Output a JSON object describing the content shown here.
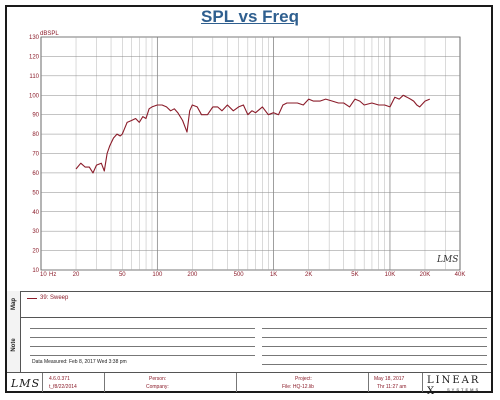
{
  "title": "SPL vs Freq",
  "chart_data": {
    "type": "line",
    "title": "SPL vs Freq",
    "ylabel": "dBSPL",
    "xlabel": "Hz",
    "x_scale": "log",
    "xlim": [
      10,
      40000
    ],
    "ylim": [
      10,
      130
    ],
    "grid": true,
    "x_tick_labels": [
      {
        "value": 10,
        "label": "10"
      },
      {
        "value": 20,
        "label": "20"
      },
      {
        "value": 50,
        "label": "50"
      },
      {
        "value": 100,
        "label": "100"
      },
      {
        "value": 200,
        "label": "200"
      },
      {
        "value": 500,
        "label": "500"
      },
      {
        "value": 1000,
        "label": "1K"
      },
      {
        "value": 2000,
        "label": "2K"
      },
      {
        "value": 5000,
        "label": "5K"
      },
      {
        "value": 10000,
        "label": "10K"
      },
      {
        "value": 20000,
        "label": "20K"
      },
      {
        "value": 40000,
        "label": "40K"
      }
    ],
    "y_ticks": [
      10,
      20,
      30,
      40,
      50,
      60,
      70,
      80,
      90,
      100,
      110,
      120,
      130
    ],
    "series": [
      {
        "name": "39: Sweep",
        "color": "#8b1c2a",
        "x": [
          20,
          22,
          24,
          26,
          28,
          30,
          33,
          35,
          37,
          39,
          42,
          45,
          48,
          50,
          55,
          60,
          65,
          70,
          75,
          80,
          85,
          90,
          100,
          110,
          120,
          130,
          140,
          150,
          165,
          180,
          190,
          200,
          220,
          240,
          270,
          300,
          330,
          360,
          400,
          450,
          500,
          550,
          600,
          650,
          700,
          800,
          900,
          1000,
          1100,
          1200,
          1300,
          1400,
          1600,
          1800,
          2000,
          2200,
          2500,
          2800,
          3200,
          3600,
          4000,
          4500,
          5000,
          5500,
          6000,
          7000,
          8000,
          9000,
          10000,
          11000,
          12000,
          13000,
          14000,
          15000,
          16000,
          17000,
          18000,
          20000,
          22000
        ],
        "y": [
          62,
          65,
          63,
          63,
          60,
          64,
          65,
          61,
          70,
          74,
          78,
          80,
          79,
          80,
          86,
          87,
          88,
          86,
          89,
          88,
          93,
          94,
          95,
          95,
          94,
          92,
          93,
          91,
          87,
          81,
          92,
          95,
          94,
          90,
          90,
          94,
          94,
          92,
          95,
          92,
          94,
          95,
          90,
          92,
          91,
          94,
          90,
          91,
          90,
          95,
          96,
          96,
          96,
          95,
          98,
          97,
          97,
          98,
          97,
          96,
          96,
          94,
          98,
          97,
          95,
          96,
          95,
          95,
          94,
          99,
          98,
          100,
          99,
          98,
          97,
          95,
          94,
          97,
          98
        ]
      }
    ],
    "watermark": "LMS"
  },
  "map_label": "Map",
  "legend": {
    "label": "39: Sweep"
  },
  "note_label": "Note",
  "data_measured": "Data Measured: Feb  8, 2017  Wed  3:38 pm",
  "footer": {
    "logo": "LMS",
    "version": "4.6.0.371",
    "version_date": "t_f8/22/2014",
    "person_label": "Person:",
    "company_label": "Company:",
    "project_label": "Project:",
    "file_label": "File: HQ-12.lib",
    "date": "May 18, 2017",
    "time": "Thr 11:27 am",
    "brand": "LINEAR X",
    "brand_sub": "SYSTEMS"
  }
}
